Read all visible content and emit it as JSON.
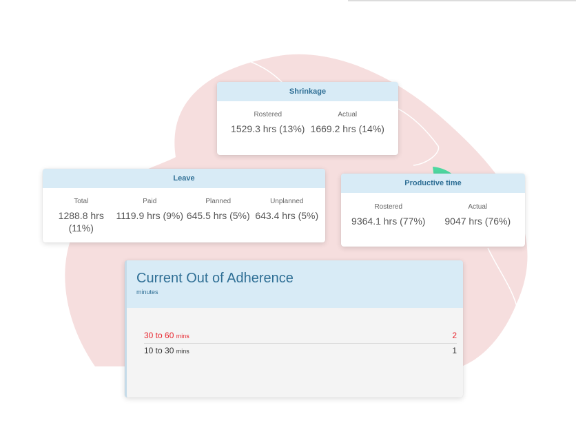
{
  "colors": {
    "blob": "#f6dede",
    "header_bg": "#d8ebf6",
    "header_text": "#2f6f95",
    "alert": "#e8262e",
    "accent_green": "#4ed7a0"
  },
  "shrinkage": {
    "title": "Shrinkage",
    "columns": [
      {
        "label": "Rostered",
        "value": "1529.3 hrs (13%)"
      },
      {
        "label": "Actual",
        "value": "1669.2 hrs (14%)"
      }
    ]
  },
  "leave": {
    "title": "Leave",
    "columns": [
      {
        "label": "Total",
        "value": "1288.8 hrs (11%)"
      },
      {
        "label": "Paid",
        "value": "1119.9 hrs (9%)"
      },
      {
        "label": "Planned",
        "value": "645.5 hrs (5%)"
      },
      {
        "label": "Unplanned",
        "value": "643.4 hrs (5%)"
      }
    ]
  },
  "productive": {
    "title": "Productive time",
    "columns": [
      {
        "label": "Rostered",
        "value": "9364.1 hrs (77%)"
      },
      {
        "label": "Actual",
        "value": "9047 hrs (76%)"
      }
    ]
  },
  "adherence": {
    "title": "Current Out of Adherence",
    "subtitle": "minutes",
    "rows": [
      {
        "range": "30 to 60",
        "unit": "mins",
        "count": "2"
      },
      {
        "range": "10 to 30",
        "unit": "mins",
        "count": "1"
      }
    ]
  }
}
